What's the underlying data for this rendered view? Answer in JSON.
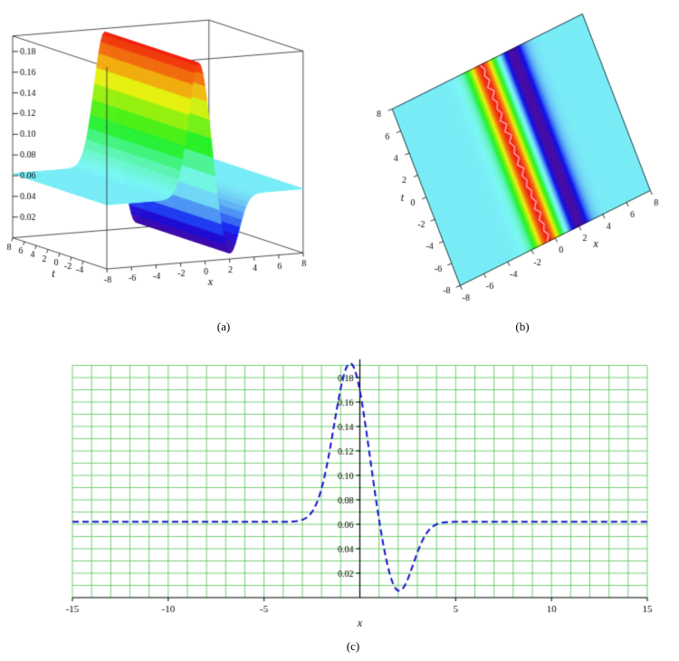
{
  "figure": {
    "background": "#ffffff",
    "captions": {
      "a": "(a)",
      "b": "(b)",
      "c": "(c)"
    }
  },
  "chart_data": [
    {
      "id": "a",
      "type": "surface3d",
      "view": "boxed-perspective",
      "xlabel": "x",
      "tlabel": "t",
      "x_range": [
        -8,
        8
      ],
      "t_range": [
        -8,
        8
      ],
      "z_range": [
        0,
        0.195
      ],
      "x_ticks": [
        -8,
        -6,
        -4,
        -2,
        0,
        2,
        4,
        6,
        8
      ],
      "t_ticks": [
        8,
        6,
        4,
        2,
        0,
        -2,
        -4
      ],
      "z_ticks": [
        0.02,
        0.04,
        0.06,
        0.08,
        0.1,
        0.12,
        0.14,
        0.16,
        0.18
      ],
      "surface_model": {
        "baseline": 0.062,
        "peak": {
          "center": -0.5,
          "amplitude": 0.13,
          "width": 1.44
        },
        "dip": {
          "center": 2.0,
          "amplitude": -0.058,
          "width": 1.2
        }
      },
      "colormap": "z-hue-rainbow",
      "edge_color": "#222222"
    },
    {
      "id": "b",
      "type": "heatmap",
      "view": "top-down-rotated",
      "xlabel": "x",
      "tlabel": "t",
      "x_range": [
        -8,
        8
      ],
      "t_range": [
        -8,
        8
      ],
      "x_ticks": [
        -8,
        -6,
        -4,
        -2,
        0,
        2,
        4,
        6,
        8
      ],
      "t_ticks": [
        8,
        6,
        4,
        2,
        0,
        -2,
        -4,
        -6,
        -8
      ],
      "surface_model": {
        "baseline": 0.062,
        "peak": {
          "center": -0.5,
          "amplitude": 0.13,
          "width": 1.44
        },
        "dip": {
          "center": 2.0,
          "amplitude": -0.058,
          "width": 1.2
        }
      },
      "colormap": "z-hue-rainbow",
      "ridge_highlight_color": "rgba(255,190,200,0.95)",
      "ridge_base_color": "rgba(255,70,70,0.85)",
      "edge_color": "#111111"
    },
    {
      "id": "c",
      "type": "line",
      "xlabel": "x",
      "x_range": [
        -15,
        15
      ],
      "y_range": [
        0,
        0.195
      ],
      "x_ticks": [
        -15,
        -10,
        -5,
        5,
        10,
        15
      ],
      "y_ticks": [
        0.02,
        0.04,
        0.06,
        0.08,
        0.1,
        0.12,
        0.14,
        0.16,
        0.18
      ],
      "grid_step_x": 1,
      "grid_step_y": 0.01,
      "grid_color": "#55c355",
      "axis_color": "#000000",
      "line_color": "#1414cc",
      "line_style": "dashed",
      "dash_pattern": [
        7,
        4
      ],
      "model": {
        "baseline": 0.062,
        "peak": {
          "center": -0.5,
          "amplitude": 0.13,
          "width": 1.44
        },
        "dip": {
          "center": 2.0,
          "amplitude": -0.058,
          "width": 1.2
        }
      },
      "key_points": [
        [
          -15,
          0.062
        ],
        [
          -10,
          0.062
        ],
        [
          -5,
          0.062
        ],
        [
          -4,
          0.062
        ],
        [
          -3,
          0.0637
        ],
        [
          -2,
          0.0892
        ],
        [
          -1,
          0.1713
        ],
        [
          -0.5,
          0.192
        ],
        [
          0,
          0.1692
        ],
        [
          0.5,
          0.118
        ],
        [
          1,
          0.0641
        ],
        [
          1.5,
          0.023
        ],
        [
          2,
          0.0057
        ],
        [
          2.5,
          0.0152
        ],
        [
          3,
          0.0368
        ],
        [
          4,
          0.0599
        ],
        [
          5,
          0.062
        ],
        [
          10,
          0.062
        ],
        [
          15,
          0.062
        ]
      ]
    }
  ]
}
